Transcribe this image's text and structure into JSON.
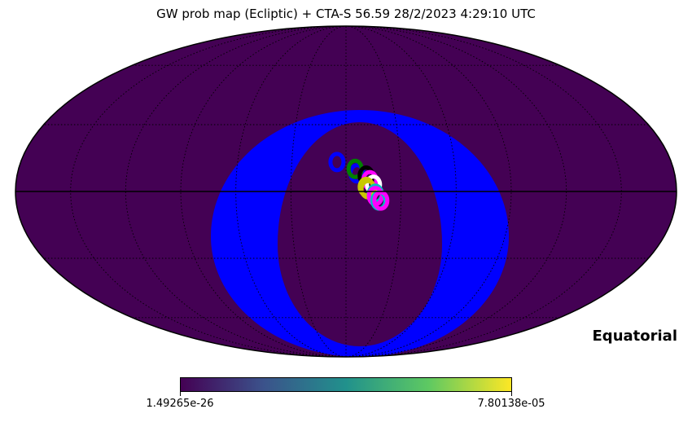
{
  "chart_data": {
    "type": "heatmap",
    "title": "GW prob map (Ecliptic) + CTA-S 56.59  28/2/2023 4:29:10 UTC",
    "projection": "mollweide",
    "coordinate_label": "Equatorial",
    "grid": true,
    "colorbar": {
      "colormap": "viridis",
      "min_label": "1.49265e-26",
      "max_label": "7.80138e-05"
    },
    "colors": {
      "background_map": "#440154",
      "visibility_band": "#0000ff",
      "colorbar_stops": [
        "#440154",
        "#3b528b",
        "#21918c",
        "#5ec962",
        "#fde725"
      ]
    },
    "pointings": [
      {
        "color": "#0000ff",
        "lon": 5,
        "lat": 13
      },
      {
        "color": "#0000ff",
        "lon": -6,
        "lat": 8
      },
      {
        "color": "#008000",
        "lon": -5,
        "lat": 10
      },
      {
        "color": "#000000",
        "lon": -11,
        "lat": 7
      },
      {
        "color": "#ff00ff",
        "lon": -13,
        "lat": 5
      },
      {
        "color": "#ffffff",
        "lon": -15,
        "lat": 3
      },
      {
        "color": "#c8c800",
        "lon": -11,
        "lat": 2
      },
      {
        "color": "#c8c800",
        "lon": -12,
        "lat": 1
      },
      {
        "color": "#00c0c0",
        "lon": -16,
        "lat": -1
      },
      {
        "color": "#ff00ff",
        "lon": -16,
        "lat": -2
      },
      {
        "color": "#00c0c0",
        "lon": -18,
        "lat": -4
      },
      {
        "color": "#ff00ff",
        "lon": -19,
        "lat": -4
      }
    ]
  }
}
